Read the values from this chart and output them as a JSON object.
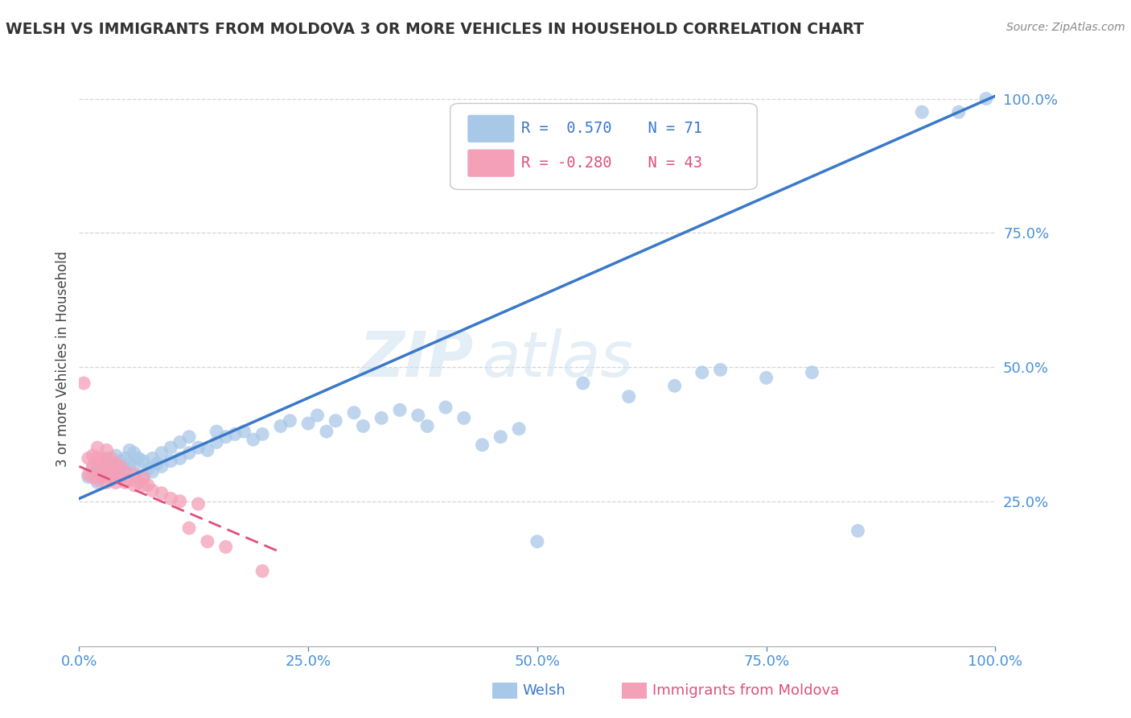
{
  "title": "WELSH VS IMMIGRANTS FROM MOLDOVA 3 OR MORE VEHICLES IN HOUSEHOLD CORRELATION CHART",
  "source": "Source: ZipAtlas.com",
  "ylabel": "3 or more Vehicles in Household",
  "xmin": 0.0,
  "xmax": 1.0,
  "ymin": -0.02,
  "ymax": 1.05,
  "x_tick_labels": [
    "0.0%",
    "25.0%",
    "50.0%",
    "75.0%",
    "100.0%"
  ],
  "x_tick_vals": [
    0.0,
    0.25,
    0.5,
    0.75,
    1.0
  ],
  "y_tick_labels": [
    "25.0%",
    "50.0%",
    "75.0%",
    "100.0%"
  ],
  "y_tick_vals": [
    0.25,
    0.5,
    0.75,
    1.0
  ],
  "legend_labels": [
    "Welsh",
    "Immigrants from Moldova"
  ],
  "R_welsh": 0.57,
  "N_welsh": 71,
  "R_moldova": -0.28,
  "N_moldova": 43,
  "blue_color": "#a8c8e8",
  "pink_color": "#f4a0b8",
  "blue_line_color": "#3a78c9",
  "pink_line_color": "#e0507a",
  "blue_scatter": [
    [
      0.01,
      0.295
    ],
    [
      0.015,
      0.31
    ],
    [
      0.02,
      0.285
    ],
    [
      0.02,
      0.305
    ],
    [
      0.025,
      0.295
    ],
    [
      0.03,
      0.31
    ],
    [
      0.03,
      0.33
    ],
    [
      0.035,
      0.3
    ],
    [
      0.04,
      0.315
    ],
    [
      0.04,
      0.335
    ],
    [
      0.045,
      0.295
    ],
    [
      0.045,
      0.325
    ],
    [
      0.05,
      0.31
    ],
    [
      0.05,
      0.33
    ],
    [
      0.055,
      0.32
    ],
    [
      0.055,
      0.345
    ],
    [
      0.06,
      0.315
    ],
    [
      0.06,
      0.34
    ],
    [
      0.065,
      0.33
    ],
    [
      0.07,
      0.295
    ],
    [
      0.07,
      0.325
    ],
    [
      0.075,
      0.31
    ],
    [
      0.08,
      0.305
    ],
    [
      0.08,
      0.33
    ],
    [
      0.085,
      0.32
    ],
    [
      0.09,
      0.315
    ],
    [
      0.09,
      0.34
    ],
    [
      0.1,
      0.325
    ],
    [
      0.1,
      0.35
    ],
    [
      0.11,
      0.33
    ],
    [
      0.11,
      0.36
    ],
    [
      0.12,
      0.34
    ],
    [
      0.12,
      0.37
    ],
    [
      0.13,
      0.35
    ],
    [
      0.14,
      0.345
    ],
    [
      0.15,
      0.36
    ],
    [
      0.15,
      0.38
    ],
    [
      0.16,
      0.37
    ],
    [
      0.17,
      0.375
    ],
    [
      0.18,
      0.38
    ],
    [
      0.19,
      0.365
    ],
    [
      0.2,
      0.375
    ],
    [
      0.22,
      0.39
    ],
    [
      0.23,
      0.4
    ],
    [
      0.25,
      0.395
    ],
    [
      0.26,
      0.41
    ],
    [
      0.27,
      0.38
    ],
    [
      0.28,
      0.4
    ],
    [
      0.3,
      0.415
    ],
    [
      0.31,
      0.39
    ],
    [
      0.33,
      0.405
    ],
    [
      0.35,
      0.42
    ],
    [
      0.37,
      0.41
    ],
    [
      0.38,
      0.39
    ],
    [
      0.4,
      0.425
    ],
    [
      0.42,
      0.405
    ],
    [
      0.44,
      0.355
    ],
    [
      0.46,
      0.37
    ],
    [
      0.48,
      0.385
    ],
    [
      0.5,
      0.175
    ],
    [
      0.55,
      0.47
    ],
    [
      0.6,
      0.445
    ],
    [
      0.65,
      0.465
    ],
    [
      0.68,
      0.49
    ],
    [
      0.7,
      0.495
    ],
    [
      0.75,
      0.48
    ],
    [
      0.8,
      0.49
    ],
    [
      0.85,
      0.195
    ],
    [
      0.92,
      0.975
    ],
    [
      0.96,
      0.975
    ],
    [
      0.99,
      1.0
    ]
  ],
  "pink_scatter": [
    [
      0.005,
      0.47
    ],
    [
      0.01,
      0.3
    ],
    [
      0.01,
      0.33
    ],
    [
      0.015,
      0.295
    ],
    [
      0.015,
      0.315
    ],
    [
      0.015,
      0.335
    ],
    [
      0.02,
      0.29
    ],
    [
      0.02,
      0.31
    ],
    [
      0.02,
      0.33
    ],
    [
      0.02,
      0.35
    ],
    [
      0.025,
      0.295
    ],
    [
      0.025,
      0.315
    ],
    [
      0.025,
      0.33
    ],
    [
      0.03,
      0.285
    ],
    [
      0.03,
      0.305
    ],
    [
      0.03,
      0.325
    ],
    [
      0.03,
      0.345
    ],
    [
      0.035,
      0.29
    ],
    [
      0.035,
      0.31
    ],
    [
      0.035,
      0.33
    ],
    [
      0.04,
      0.285
    ],
    [
      0.04,
      0.305
    ],
    [
      0.04,
      0.32
    ],
    [
      0.045,
      0.295
    ],
    [
      0.045,
      0.315
    ],
    [
      0.05,
      0.285
    ],
    [
      0.05,
      0.305
    ],
    [
      0.055,
      0.29
    ],
    [
      0.06,
      0.28
    ],
    [
      0.06,
      0.3
    ],
    [
      0.065,
      0.285
    ],
    [
      0.07,
      0.28
    ],
    [
      0.07,
      0.295
    ],
    [
      0.075,
      0.28
    ],
    [
      0.08,
      0.27
    ],
    [
      0.09,
      0.265
    ],
    [
      0.1,
      0.255
    ],
    [
      0.11,
      0.25
    ],
    [
      0.12,
      0.2
    ],
    [
      0.13,
      0.245
    ],
    [
      0.14,
      0.175
    ],
    [
      0.16,
      0.165
    ],
    [
      0.2,
      0.12
    ]
  ],
  "blue_line_x": [
    0.0,
    1.0
  ],
  "blue_line_y": [
    0.255,
    1.005
  ],
  "pink_line_x": [
    0.0,
    0.22
  ],
  "pink_line_y": [
    0.315,
    0.155
  ],
  "watermark_line1": "ZIP",
  "watermark_line2": "atlas",
  "background_color": "#ffffff",
  "grid_color": "#cccccc"
}
